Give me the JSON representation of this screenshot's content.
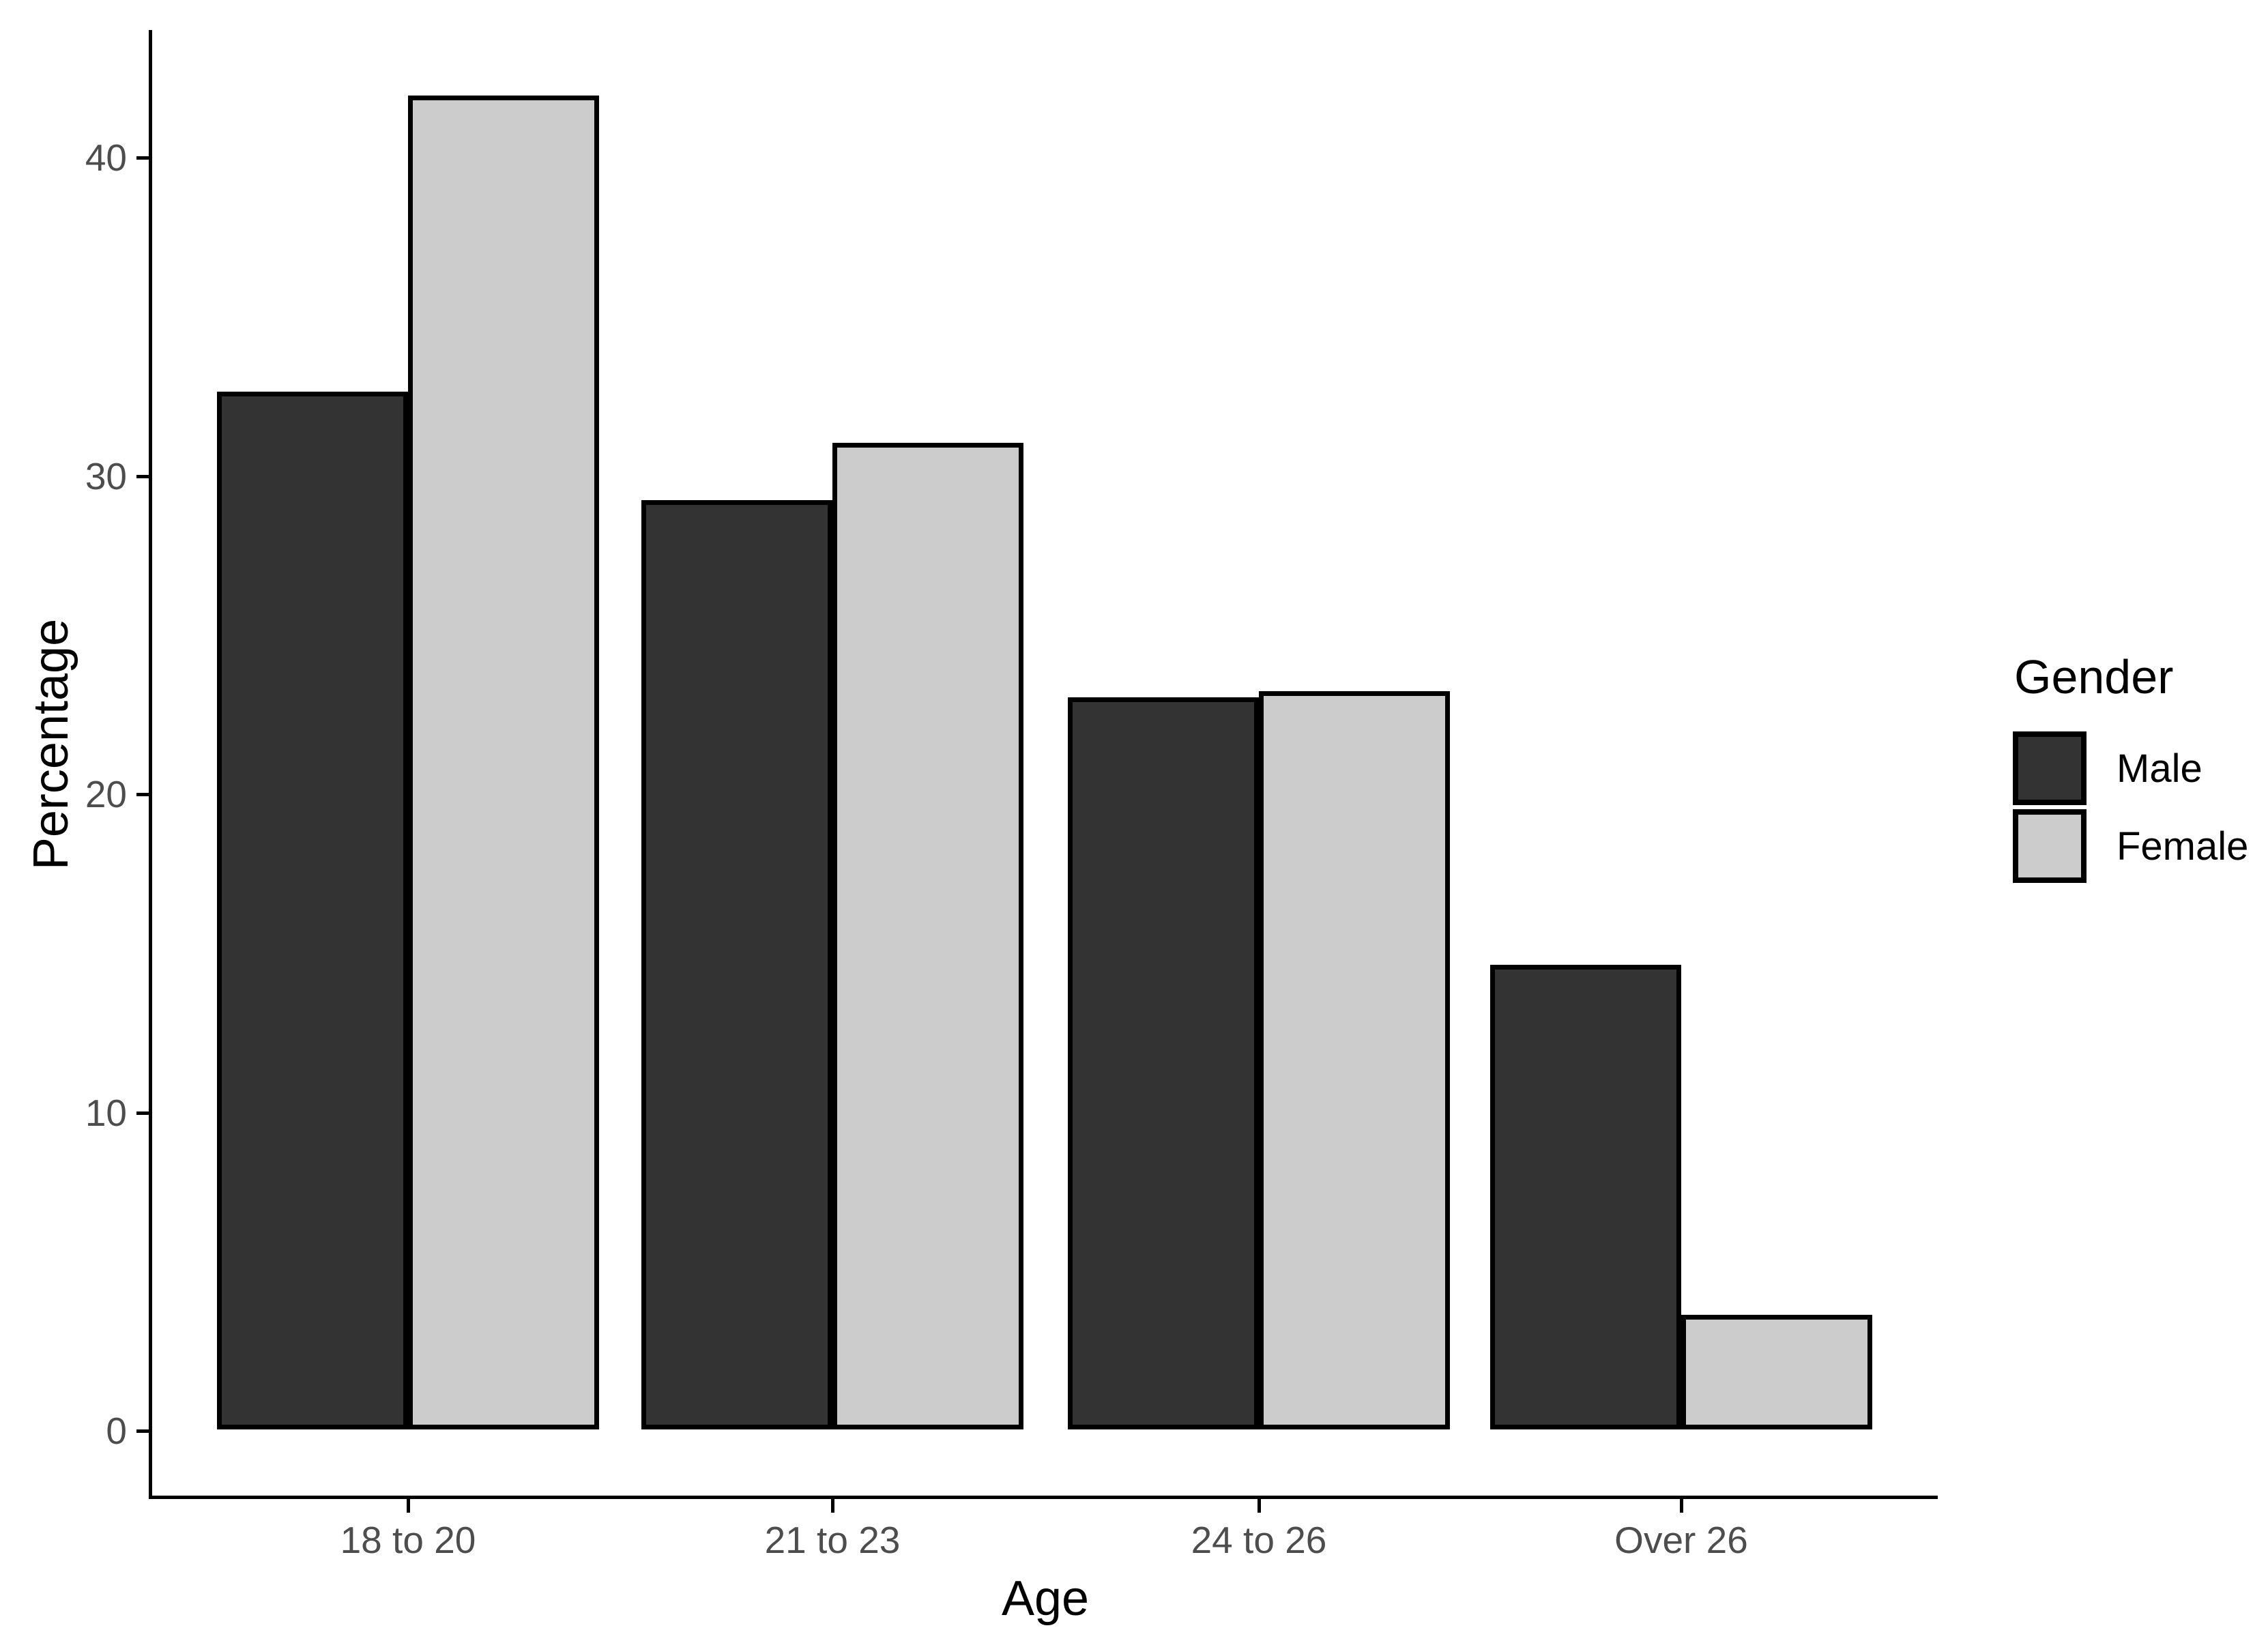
{
  "chart_data": {
    "type": "bar",
    "title": "",
    "xlabel": "Age",
    "ylabel": "Percentage",
    "categories": [
      "18 to 20",
      "21 to 23",
      "24 to 26",
      "Over 26"
    ],
    "series": [
      {
        "name": "Male",
        "color": "#333333",
        "values": [
          32.6,
          29.2,
          23.0,
          14.6
        ]
      },
      {
        "name": "Female",
        "color": "#CCCCCC",
        "values": [
          41.9,
          31.0,
          23.2,
          3.6
        ]
      }
    ],
    "bar_outline_color": "#000000",
    "yticks": [
      0,
      10,
      20,
      30,
      40
    ],
    "ylim": [
      0,
      44
    ],
    "grid": false,
    "legend_title": "Gender",
    "legend_position": "right",
    "tick_label_color": "#4D4D4D",
    "axis_color": "#000000",
    "background": "#FFFFFF"
  }
}
